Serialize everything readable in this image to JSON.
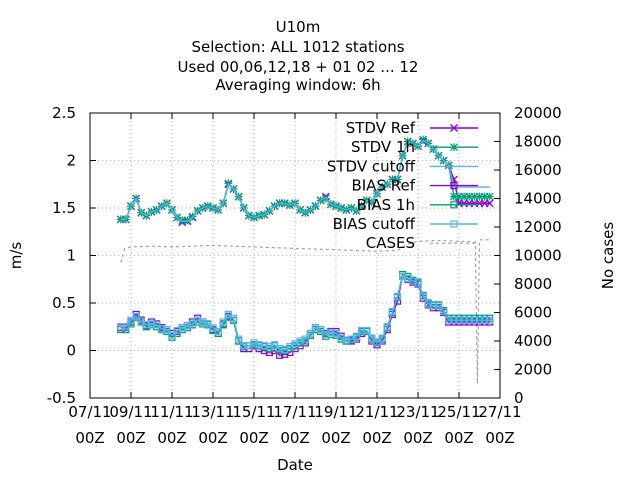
{
  "title_lines": [
    "U10m",
    "Selection: ALL    1012 stations",
    "Used  00,06,12,18 + 01 02 ... 12",
    "Averaging window:  6h"
  ],
  "chart_data": {
    "type": "line",
    "title": "U10m",
    "xlabel": "Date",
    "ylabel": "m/s",
    "y2label": "No cases",
    "xlim": [
      0,
      20
    ],
    "ylim": [
      -0.5,
      2.5
    ],
    "y2lim": [
      0,
      20000
    ],
    "x_ticks": [
      0,
      2,
      4,
      6,
      8,
      10,
      12,
      14,
      16,
      18,
      20
    ],
    "x_tick_labels": [
      [
        "07/11",
        "00Z"
      ],
      [
        "09/11",
        "00Z"
      ],
      [
        "11/11",
        "00Z"
      ],
      [
        "13/11",
        "00Z"
      ],
      [
        "15/11",
        "00Z"
      ],
      [
        "17/11",
        "00Z"
      ],
      [
        "19/11",
        "00Z"
      ],
      [
        "21/11",
        "00Z"
      ],
      [
        "23/11",
        "00Z"
      ],
      [
        "25/11",
        "00Z"
      ],
      [
        "27/11",
        "00Z"
      ]
    ],
    "y_ticks": [
      -0.5,
      0,
      0.5,
      1,
      1.5,
      2,
      2.5
    ],
    "y_tick_labels": [
      "-0.5",
      "0",
      "0.5",
      "1",
      "1.5",
      "2",
      "2.5"
    ],
    "y2_ticks": [
      0,
      2000,
      4000,
      6000,
      8000,
      10000,
      12000,
      14000,
      16000,
      18000,
      20000
    ],
    "y2_tick_labels": [
      "0",
      "2000",
      "4000",
      "6000",
      "8000",
      "10000",
      "12000",
      "14000",
      "16000",
      "18000",
      "20000"
    ],
    "grid": true,
    "legend_position": "top-right",
    "x": [
      1.5,
      1.75,
      2.0,
      2.25,
      2.5,
      2.75,
      3.0,
      3.25,
      3.5,
      3.75,
      4.0,
      4.25,
      4.5,
      4.75,
      5.0,
      5.25,
      5.5,
      5.75,
      6.0,
      6.25,
      6.5,
      6.75,
      7.0,
      7.25,
      7.5,
      7.75,
      8.0,
      8.25,
      8.5,
      8.75,
      9.0,
      9.25,
      9.5,
      9.75,
      10.0,
      10.25,
      10.5,
      10.75,
      11.0,
      11.25,
      11.5,
      11.75,
      12.0,
      12.25,
      12.5,
      12.75,
      13.0,
      13.25,
      13.5,
      13.75,
      14.0,
      14.25,
      14.5,
      14.75,
      15.0,
      15.25,
      15.5,
      15.75,
      16.0,
      16.25,
      16.5,
      16.75,
      17.0,
      17.25,
      17.5,
      17.75,
      18.0,
      18.25,
      18.5,
      18.75,
      19.0,
      19.25,
      19.5
    ],
    "series": [
      {
        "name": "STDV Ref",
        "axis": "y",
        "color": "#9400d3",
        "marker": "x",
        "values": [
          1.38,
          1.38,
          1.52,
          1.6,
          1.45,
          1.42,
          1.46,
          1.48,
          1.52,
          1.55,
          1.48,
          1.4,
          1.35,
          1.36,
          1.4,
          1.47,
          1.5,
          1.52,
          1.5,
          1.48,
          1.55,
          1.75,
          1.7,
          1.62,
          1.5,
          1.42,
          1.4,
          1.42,
          1.43,
          1.47,
          1.52,
          1.55,
          1.55,
          1.53,
          1.55,
          1.48,
          1.45,
          1.48,
          1.52,
          1.58,
          1.62,
          1.54,
          1.52,
          1.5,
          1.48,
          1.5,
          1.47,
          1.52,
          1.58,
          1.56,
          1.65,
          1.72,
          1.75,
          1.8,
          1.8,
          2.05,
          2.2,
          2.18,
          2.15,
          2.2,
          2.18,
          2.12,
          2.05,
          2.0,
          1.95,
          1.8,
          1.55,
          1.55,
          1.55,
          1.55,
          1.55,
          1.55,
          1.55
        ]
      },
      {
        "name": "STDV 1h",
        "axis": "y",
        "color": "#009e73",
        "marker": "star",
        "values": [
          1.38,
          1.38,
          1.52,
          1.6,
          1.45,
          1.42,
          1.46,
          1.48,
          1.52,
          1.55,
          1.48,
          1.4,
          1.37,
          1.37,
          1.41,
          1.47,
          1.5,
          1.52,
          1.5,
          1.48,
          1.55,
          1.76,
          1.7,
          1.62,
          1.5,
          1.42,
          1.4,
          1.42,
          1.43,
          1.47,
          1.52,
          1.55,
          1.55,
          1.53,
          1.55,
          1.48,
          1.45,
          1.48,
          1.52,
          1.58,
          1.6,
          1.54,
          1.52,
          1.5,
          1.48,
          1.5,
          1.47,
          1.52,
          1.58,
          1.56,
          1.65,
          1.72,
          1.75,
          1.8,
          1.8,
          2.05,
          2.2,
          2.18,
          2.15,
          2.22,
          2.18,
          2.12,
          2.05,
          2.0,
          1.95,
          1.62,
          1.62,
          1.62,
          1.62,
          1.62,
          1.62,
          1.62,
          1.62
        ]
      },
      {
        "name": "STDV cutoff",
        "axis": "y",
        "color": "#56b4e9",
        "marker": "none",
        "values": [
          1.38,
          1.38,
          1.52,
          1.6,
          1.45,
          1.42,
          1.46,
          1.48,
          1.52,
          1.55,
          1.48,
          1.4,
          1.36,
          1.36,
          1.4,
          1.47,
          1.5,
          1.52,
          1.5,
          1.48,
          1.55,
          1.75,
          1.7,
          1.62,
          1.5,
          1.42,
          1.4,
          1.42,
          1.43,
          1.47,
          1.52,
          1.55,
          1.55,
          1.53,
          1.55,
          1.48,
          1.45,
          1.48,
          1.52,
          1.58,
          1.61,
          1.54,
          1.52,
          1.5,
          1.48,
          1.5,
          1.47,
          1.52,
          1.58,
          1.56,
          1.65,
          1.72,
          1.75,
          1.8,
          1.8,
          2.05,
          2.2,
          2.18,
          2.15,
          2.21,
          2.18,
          2.12,
          2.05,
          2.0,
          1.95,
          1.72,
          1.72,
          1.72,
          1.72,
          1.72,
          1.72,
          1.72,
          1.72
        ]
      },
      {
        "name": "BIAS Ref",
        "axis": "y",
        "color": "#9400d3",
        "marker": "square",
        "values": [
          0.24,
          0.24,
          0.3,
          0.38,
          0.32,
          0.26,
          0.3,
          0.28,
          0.24,
          0.22,
          0.18,
          0.2,
          0.24,
          0.26,
          0.3,
          0.34,
          0.3,
          0.28,
          0.22,
          0.18,
          0.28,
          0.36,
          0.32,
          0.1,
          0.02,
          0.02,
          0.05,
          0.02,
          0.0,
          -0.02,
          0.0,
          -0.05,
          -0.04,
          -0.02,
          0.02,
          0.05,
          0.08,
          0.16,
          0.24,
          0.22,
          0.18,
          0.2,
          0.2,
          0.15,
          0.1,
          0.1,
          0.12,
          0.18,
          0.2,
          0.1,
          0.06,
          0.1,
          0.22,
          0.38,
          0.52,
          0.78,
          0.75,
          0.72,
          0.7,
          0.55,
          0.48,
          0.45,
          0.45,
          0.4,
          0.3,
          0.3,
          0.3,
          0.3,
          0.3,
          0.3,
          0.3,
          0.3,
          0.3
        ]
      },
      {
        "name": "BIAS 1h",
        "axis": "y",
        "color": "#009e73",
        "marker": "square",
        "values": [
          0.22,
          0.22,
          0.28,
          0.35,
          0.3,
          0.25,
          0.27,
          0.25,
          0.22,
          0.2,
          0.14,
          0.18,
          0.22,
          0.24,
          0.27,
          0.3,
          0.28,
          0.27,
          0.21,
          0.18,
          0.27,
          0.35,
          0.32,
          0.1,
          0.04,
          0.05,
          0.06,
          0.05,
          0.04,
          0.02,
          0.05,
          0.0,
          0.0,
          0.02,
          0.05,
          0.08,
          0.1,
          0.16,
          0.22,
          0.2,
          0.15,
          0.17,
          0.16,
          0.12,
          0.1,
          0.11,
          0.14,
          0.2,
          0.2,
          0.12,
          0.08,
          0.12,
          0.24,
          0.4,
          0.56,
          0.8,
          0.78,
          0.74,
          0.72,
          0.58,
          0.5,
          0.48,
          0.48,
          0.42,
          0.34,
          0.34,
          0.34,
          0.34,
          0.34,
          0.34,
          0.34,
          0.34,
          0.34
        ]
      },
      {
        "name": "BIAS cutoff",
        "axis": "y",
        "color": "#56b4e9",
        "marker": "square",
        "values": [
          0.25,
          0.25,
          0.32,
          0.36,
          0.31,
          0.27,
          0.28,
          0.27,
          0.23,
          0.22,
          0.16,
          0.21,
          0.24,
          0.26,
          0.28,
          0.32,
          0.3,
          0.28,
          0.24,
          0.2,
          0.3,
          0.38,
          0.34,
          0.12,
          0.05,
          0.05,
          0.08,
          0.06,
          0.05,
          0.04,
          0.06,
          0.02,
          0.01,
          0.04,
          0.07,
          0.1,
          0.12,
          0.18,
          0.24,
          0.22,
          0.17,
          0.19,
          0.18,
          0.13,
          0.11,
          0.12,
          0.15,
          0.21,
          0.21,
          0.13,
          0.09,
          0.13,
          0.25,
          0.41,
          0.57,
          0.78,
          0.76,
          0.73,
          0.71,
          0.57,
          0.49,
          0.47,
          0.47,
          0.41,
          0.32,
          0.32,
          0.32,
          0.32,
          0.32,
          0.32,
          0.32,
          0.32,
          0.32
        ]
      },
      {
        "name": "CASES",
        "axis": "y2",
        "color": "#a0a0a0",
        "marker": "none",
        "dashed": true,
        "x": [
          1.5,
          1.7,
          2.0,
          3.0,
          4.0,
          5.0,
          6.0,
          7.0,
          8.0,
          9.0,
          10.0,
          11.0,
          12.0,
          13.0,
          14.0,
          15.0,
          15.5,
          16.0,
          17.0,
          18.0,
          18.8,
          18.9,
          19.0,
          19.5
        ],
        "values": [
          9500,
          10500,
          10600,
          10650,
          10600,
          10650,
          10700,
          10650,
          10600,
          10550,
          10500,
          10450,
          10400,
          10350,
          10300,
          10350,
          10800,
          11000,
          11050,
          11000,
          10950,
          1000,
          11100,
          11100
        ]
      }
    ]
  }
}
